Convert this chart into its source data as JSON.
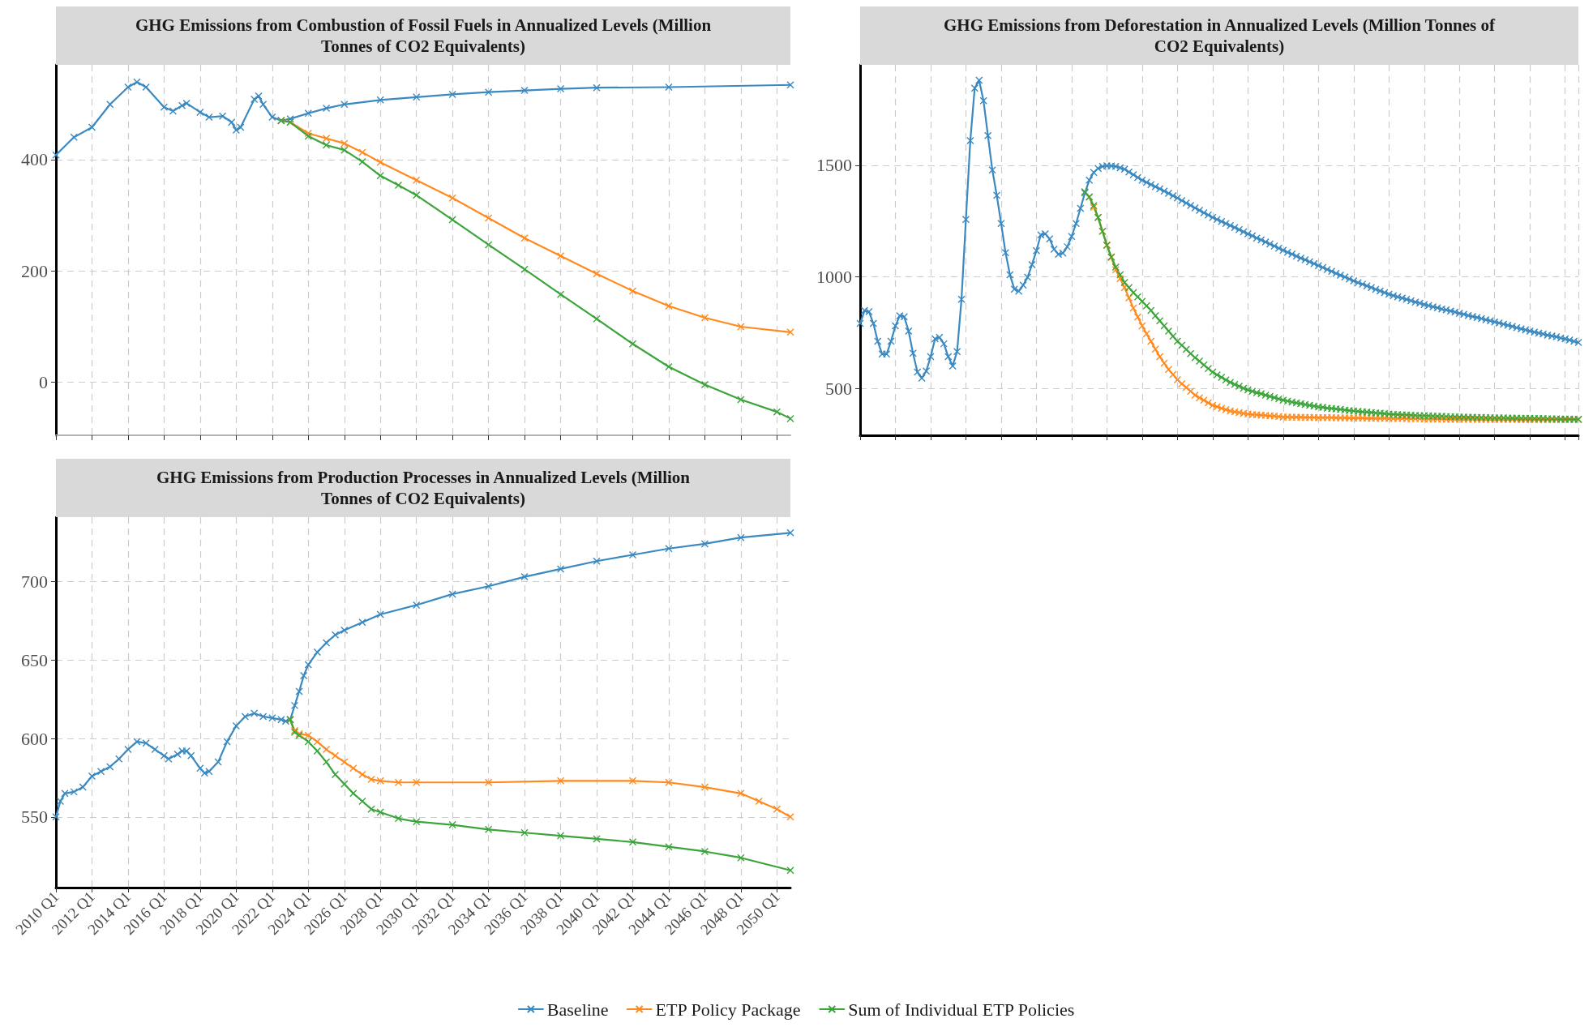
{
  "chart_data": [
    {
      "type": "line",
      "title": "GHG Emissions from Combustion of Fossil Fuels in Annualized Levels (Million Tonnes of CO2 Equivalents)",
      "xlim": [
        "2010-01",
        "2050-10"
      ],
      "xticks": [
        {
          "value": "2010-01",
          "label": null
        },
        {
          "value": "2012-01",
          "label": null
        },
        {
          "value": "2014-01",
          "label": null
        },
        {
          "value": "2016-01",
          "label": null
        },
        {
          "value": "2018-01",
          "label": null
        },
        {
          "value": "2020-01",
          "label": null
        },
        {
          "value": "2022-01",
          "label": null
        },
        {
          "value": "2024-01",
          "label": null
        },
        {
          "value": "2026-01",
          "label": null
        },
        {
          "value": "2028-01",
          "label": null
        },
        {
          "value": "2030-01",
          "label": null
        },
        {
          "value": "2032-01",
          "label": null
        },
        {
          "value": "2034-01",
          "label": null
        },
        {
          "value": "2036-01",
          "label": null
        },
        {
          "value": "2038-01",
          "label": null
        },
        {
          "value": "2040-01",
          "label": null
        },
        {
          "value": "2042-01",
          "label": null
        },
        {
          "value": "2044-01",
          "label": null
        },
        {
          "value": "2046-01",
          "label": null
        },
        {
          "value": "2048-01",
          "label": null
        },
        {
          "value": "2050-01",
          "label": null
        }
      ],
      "ylim": [
        -95,
        570
      ],
      "yticks": [
        0,
        200,
        400
      ],
      "tick_labels": "y",
      "grid": true,
      "marker": "cross",
      "line_style": "solid",
      "series": [
        {
          "color": "#3a89c1",
          "x": [
            "2010-01",
            "2011-01",
            "2012-01",
            "2013-01",
            "2014-01",
            "2014-07",
            "2015-01",
            "2016-01",
            "2016-07",
            "2017-01",
            "2017-04",
            "2018-01",
            "2018-07",
            "2019-04",
            "2019-10",
            "2020-01",
            "2020-04",
            "2021-01",
            "2021-04",
            "2021-07",
            "2022-01",
            "2022-07",
            "2023-01",
            "2024-01",
            "2025-01",
            "2026-01",
            "2028-01",
            "2030-01",
            "2032-01",
            "2034-01",
            "2036-01",
            "2038-01",
            "2040-01",
            "2044-01",
            "2050-10"
          ],
          "values": [
            408,
            440,
            458,
            499,
            530,
            539,
            530,
            494,
            487,
            497,
            501,
            485,
            476,
            478,
            467,
            453,
            458,
            508,
            514,
            499,
            476,
            470,
            473,
            483,
            492,
            499,
            507,
            512,
            517,
            521,
            524,
            527,
            529,
            530,
            534
          ]
        },
        {
          "color": "#ff8a1e",
          "x": [
            "2022-07",
            "2023-01",
            "2024-01",
            "2025-01",
            "2026-01",
            "2027-01",
            "2028-01",
            "2030-01",
            "2032-01",
            "2034-01",
            "2036-01",
            "2038-01",
            "2040-01",
            "2042-01",
            "2044-01",
            "2046-01",
            "2048-01",
            "2050-10"
          ],
          "values": [
            470,
            467,
            447,
            438,
            429,
            413,
            395,
            363,
            331,
            295,
            259,
            227,
            195,
            164,
            137,
            116,
            100,
            90
          ]
        },
        {
          "color": "#3ba43a",
          "x": [
            "2022-07",
            "2023-01",
            "2024-01",
            "2025-01",
            "2026-01",
            "2027-01",
            "2028-01",
            "2029-01",
            "2030-01",
            "2032-01",
            "2034-01",
            "2036-01",
            "2038-01",
            "2040-01",
            "2042-01",
            "2044-01",
            "2046-01",
            "2048-01",
            "2050-01",
            "2050-10"
          ],
          "values": [
            470,
            467,
            442,
            426,
            417,
            396,
            371,
            354,
            336,
            292,
            247,
            203,
            158,
            114,
            69,
            28,
            -4,
            -31,
            -53,
            -65
          ]
        }
      ]
    },
    {
      "type": "line",
      "title": "GHG Emissions from Deforestation in Annualized Levels (Million Tonnes of CO2 Equivalents)",
      "categories": [
        null,
        null,
        null,
        null,
        null,
        null,
        null,
        null,
        null,
        null,
        null,
        null,
        null,
        null,
        null,
        null,
        null,
        null,
        null,
        null,
        null,
        null,
        null,
        null,
        null,
        null,
        null,
        null,
        null,
        null,
        null,
        null,
        null,
        null,
        null,
        null,
        null,
        null,
        null,
        null,
        null,
        null,
        null,
        null,
        null,
        null,
        null,
        null,
        null,
        null,
        null,
        null,
        null,
        null,
        null,
        null,
        null,
        null,
        null,
        null,
        null,
        null,
        null,
        null,
        null,
        null,
        null,
        null,
        null,
        null,
        null,
        null,
        null,
        null,
        null,
        null,
        null,
        null,
        null,
        null,
        null,
        null,
        null,
        null,
        null,
        null,
        null,
        null,
        null,
        null,
        null,
        null,
        null,
        null,
        null,
        null,
        null,
        null,
        null,
        null,
        null,
        null,
        null,
        null,
        null,
        null,
        null,
        null,
        null,
        null,
        null,
        null,
        null,
        null,
        null,
        null,
        null,
        null,
        null,
        null,
        null,
        null,
        null,
        null,
        null,
        null,
        null,
        null,
        null,
        null,
        null,
        null,
        null,
        null,
        null,
        null,
        null,
        null,
        null,
        null,
        null,
        null,
        null,
        null,
        null,
        null,
        null,
        null,
        null,
        null,
        null,
        null,
        null,
        null,
        null,
        null,
        null,
        null,
        null,
        null,
        null,
        null,
        null,
        null
      ],
      "ylim": [
        290,
        1950
      ],
      "yticks": [
        500,
        1000,
        1500
      ],
      "grid": true,
      "marker": "cross",
      "line_style": "solid",
      "series": [
        {
          "color": "#3a89c1",
          "values": [
            791,
            849,
            844,
            791,
            711,
            654,
            654,
            711,
            780,
            826,
            821,
            757,
            658,
            573,
            546,
            578,
            642,
            722,
            729,
            700,
            642,
            601,
            665,
            899,
            1257,
            1610,
            1846,
            1881,
            1789,
            1633,
            1479,
            1365,
            1239,
            1108,
            1009,
            945,
            936,
            963,
            998,
            1055,
            1117,
            1188,
            1193,
            1170,
            1124,
            1101,
            1106,
            1135,
            1181,
            1239,
            1307,
            1376,
            1433,
            1468,
            1486,
            1495,
            1498,
            1497,
            1495,
            1489,
            1482,
            1470,
            1458,
            1445,
            1433,
            1423,
            1413,
            1404,
            1394,
            1384,
            1374,
            1363,
            1353,
            1342,
            1331,
            1320,
            1309,
            1298,
            1287,
            1277,
            1266,
            1257,
            1248,
            1239,
            1230,
            1221,
            1212,
            1202,
            1193,
            1184,
            1174,
            1165,
            1156,
            1147,
            1138,
            1128,
            1119,
            1110,
            1102,
            1093,
            1084,
            1076,
            1067,
            1059,
            1050,
            1042,
            1033,
            1025,
            1016,
            1007,
            999,
            990,
            982,
            974,
            967,
            959,
            952,
            944,
            937,
            929,
            922,
            916,
            910,
            905,
            899,
            893,
            887,
            882,
            876,
            871,
            866,
            861,
            856,
            852,
            847,
            842,
            837,
            832,
            827,
            822,
            818,
            813,
            808,
            803,
            798,
            793,
            788,
            783,
            778,
            772,
            767,
            762,
            757,
            752,
            748,
            744,
            739,
            735,
            731,
            726,
            722,
            717,
            711,
            706
          ]
        },
        {
          "color": "#ff8a1e",
          "values": [
            null,
            null,
            null,
            null,
            null,
            null,
            null,
            null,
            null,
            null,
            null,
            null,
            null,
            null,
            null,
            null,
            null,
            null,
            null,
            null,
            null,
            null,
            null,
            null,
            null,
            null,
            null,
            null,
            null,
            null,
            null,
            null,
            null,
            null,
            null,
            null,
            null,
            null,
            null,
            null,
            null,
            null,
            null,
            null,
            null,
            null,
            null,
            null,
            null,
            null,
            null,
            1381,
            1358,
            1312,
            1266,
            1204,
            1142,
            1087,
            1032,
            992,
            952,
            906,
            860,
            820,
            780,
            745,
            711,
            676,
            642,
            613,
            585,
            562,
            539,
            521,
            504,
            487,
            470,
            458,
            447,
            435,
            424,
            418,
            411,
            405,
            399,
            395,
            392,
            388,
            385,
            383,
            382,
            380,
            379,
            377,
            376,
            374,
            372,
            372,
            371,
            371,
            371,
            370,
            370,
            370,
            369,
            369,
            369,
            369,
            368,
            368,
            368,
            367,
            367,
            367,
            367,
            366,
            366,
            366,
            366,
            366,
            365,
            365,
            365,
            365,
            364,
            364,
            364,
            364,
            363,
            363,
            363,
            363,
            363,
            362,
            362,
            362,
            362,
            362,
            362,
            362,
            361,
            361,
            361,
            361,
            361,
            361,
            361,
            361,
            361,
            361,
            360,
            360,
            360,
            360,
            360,
            360,
            360,
            360,
            360,
            360,
            360,
            360,
            360,
            360
          ]
        },
        {
          "color": "#3ba43a",
          "values": [
            null,
            null,
            null,
            null,
            null,
            null,
            null,
            null,
            null,
            null,
            null,
            null,
            null,
            null,
            null,
            null,
            null,
            null,
            null,
            null,
            null,
            null,
            null,
            null,
            null,
            null,
            null,
            null,
            null,
            null,
            null,
            null,
            null,
            null,
            null,
            null,
            null,
            null,
            null,
            null,
            null,
            null,
            null,
            null,
            null,
            null,
            null,
            null,
            null,
            null,
            null,
            1381,
            1358,
            1319,
            1266,
            1204,
            1142,
            1089,
            1044,
            1009,
            975,
            952,
            929,
            910,
            890,
            870,
            849,
            826,
            803,
            780,
            757,
            734,
            711,
            693,
            675,
            656,
            638,
            622,
            605,
            589,
            573,
            561,
            550,
            538,
            527,
            518,
            510,
            501,
            493,
            487,
            481,
            476,
            470,
            464,
            459,
            453,
            447,
            443,
            439,
            435,
            432,
            428,
            424,
            421,
            417,
            415,
            412,
            410,
            408,
            406,
            403,
            401,
            399,
            397,
            395,
            394,
            392,
            390,
            389,
            387,
            385,
            384,
            383,
            382,
            381,
            380,
            379,
            378,
            378,
            377,
            376,
            375,
            375,
            374,
            373,
            373,
            372,
            372,
            371,
            371,
            370,
            370,
            369,
            369,
            368,
            368,
            368,
            367,
            367,
            367,
            366,
            366,
            366,
            365,
            365,
            365,
            364,
            364,
            364,
            363,
            363,
            363,
            362,
            362
          ]
        }
      ]
    },
    {
      "type": "line",
      "title": "GHG Emissions from Production Processes in Annualized Levels (Million Tonnes of CO2 Equivalents)",
      "xlim": [
        "2010-01",
        "2050-10"
      ],
      "xticks": [
        {
          "value": "2010-01",
          "label": "2010 Q1"
        },
        {
          "value": "2012-01",
          "label": "2012 Q1"
        },
        {
          "value": "2014-01",
          "label": "2014 Q1"
        },
        {
          "value": "2016-01",
          "label": "2016 Q1"
        },
        {
          "value": "2018-01",
          "label": "2018 Q1"
        },
        {
          "value": "2020-01",
          "label": "2020 Q1"
        },
        {
          "value": "2022-01",
          "label": "2022 Q1"
        },
        {
          "value": "2024-01",
          "label": "2024 Q1"
        },
        {
          "value": "2026-01",
          "label": "2026 Q1"
        },
        {
          "value": "2028-01",
          "label": "2028 Q1"
        },
        {
          "value": "2030-01",
          "label": "2030 Q1"
        },
        {
          "value": "2032-01",
          "label": "2032 Q1"
        },
        {
          "value": "2034-01",
          "label": "2034 Q1"
        },
        {
          "value": "2036-01",
          "label": "2036 Q1"
        },
        {
          "value": "2038-01",
          "label": "2038 Q1"
        },
        {
          "value": "2040-01",
          "label": "2040 Q1"
        },
        {
          "value": "2042-01",
          "label": "2042 Q1"
        },
        {
          "value": "2044-01",
          "label": "2044 Q1"
        },
        {
          "value": "2046-01",
          "label": "2046 Q1"
        },
        {
          "value": "2048-01",
          "label": "2048 Q1"
        },
        {
          "value": "2050-01",
          "label": "2050 Q1"
        }
      ],
      "ylim": [
        505,
        741
      ],
      "yticks": [
        550,
        600,
        650,
        700
      ],
      "grid": true,
      "marker": "cross",
      "line_style": "solid",
      "legend": "bottom",
      "series": [
        {
          "name": "Baseline",
          "color": "#3a89c1",
          "x": [
            "2010-01",
            "2010-04",
            "2010-07",
            "2011-01",
            "2011-07",
            "2012-01",
            "2012-07",
            "2013-01",
            "2013-07",
            "2014-01",
            "2014-07",
            "2015-01",
            "2015-07",
            "2016-01",
            "2016-04",
            "2016-10",
            "2017-01",
            "2017-04",
            "2017-07",
            "2018-01",
            "2018-04",
            "2018-07",
            "2019-01",
            "2019-07",
            "2020-01",
            "2020-07",
            "2021-01",
            "2021-07",
            "2022-01",
            "2022-07",
            "2022-10",
            "2023-01",
            "2023-04",
            "2023-07",
            "2023-10",
            "2024-01",
            "2024-07",
            "2025-01",
            "2025-07",
            "2026-01",
            "2027-01",
            "2028-01",
            "2030-01",
            "2032-01",
            "2034-01",
            "2036-01",
            "2038-01",
            "2040-01",
            "2042-01",
            "2044-01",
            "2046-01",
            "2048-01",
            "2050-10"
          ],
          "values": [
            550,
            560,
            565,
            566,
            569,
            576,
            579,
            582,
            587,
            593,
            598,
            597,
            593,
            589,
            587,
            590,
            592,
            592,
            589,
            581,
            578,
            579,
            585,
            598,
            608,
            614,
            616,
            614,
            613,
            612,
            611,
            612,
            621,
            630,
            640,
            647,
            655,
            661,
            666,
            669,
            674,
            679,
            685,
            692,
            697,
            703,
            708,
            713,
            717,
            721,
            724,
            728,
            731
          ]
        },
        {
          "name": "ETP Policy Package",
          "color": "#ff8a1e",
          "x": [
            "2023-01",
            "2023-04",
            "2023-07",
            "2024-01",
            "2024-07",
            "2025-01",
            "2025-07",
            "2026-01",
            "2026-07",
            "2027-01",
            "2027-07",
            "2028-01",
            "2029-01",
            "2030-01",
            "2034-01",
            "2038-01",
            "2042-01",
            "2044-01",
            "2046-01",
            "2048-01",
            "2049-01",
            "2050-01",
            "2050-10"
          ],
          "values": [
            612,
            605,
            603,
            602,
            598,
            593,
            589,
            585,
            581,
            577,
            574,
            573,
            572,
            572,
            572,
            573,
            573,
            572,
            569,
            565,
            560,
            555,
            550
          ]
        },
        {
          "name": "Sum of Individual ETP Policies",
          "color": "#3ba43a",
          "x": [
            "2023-01",
            "2023-04",
            "2023-07",
            "2024-01",
            "2024-07",
            "2025-01",
            "2025-07",
            "2026-01",
            "2026-07",
            "2027-01",
            "2027-07",
            "2028-01",
            "2029-01",
            "2030-01",
            "2032-01",
            "2034-01",
            "2036-01",
            "2038-01",
            "2040-01",
            "2042-01",
            "2044-01",
            "2046-01",
            "2048-01",
            "2050-10"
          ],
          "values": [
            612,
            604,
            602,
            598,
            592,
            585,
            577,
            571,
            565,
            560,
            555,
            553,
            549,
            547,
            545,
            542,
            540,
            538,
            536,
            534,
            531,
            528,
            524,
            516
          ]
        }
      ]
    }
  ]
}
